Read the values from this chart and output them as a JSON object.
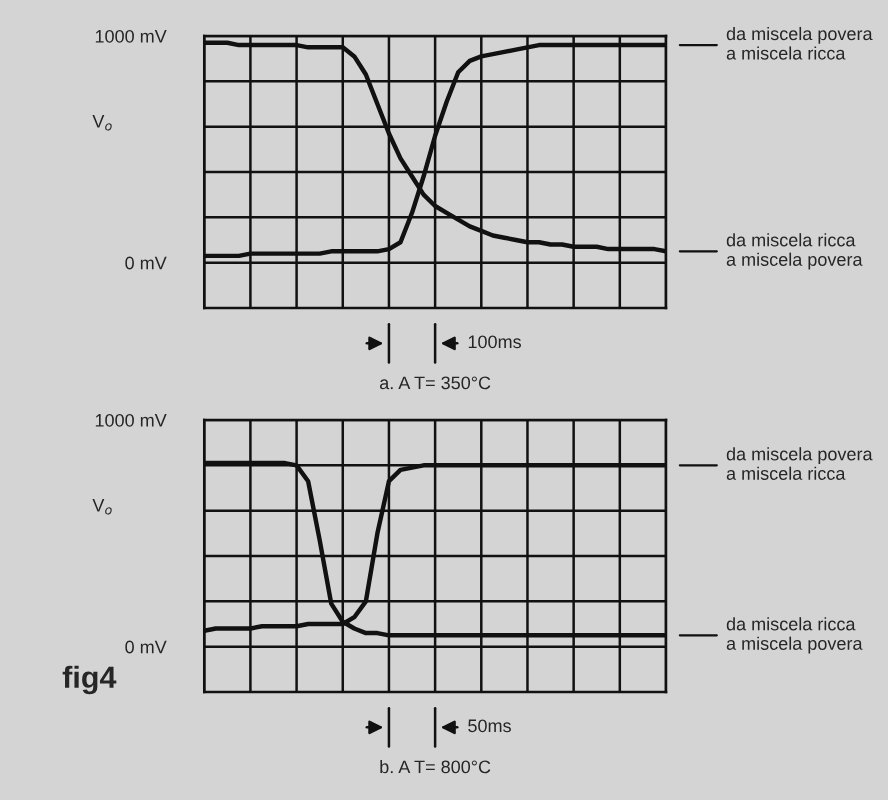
{
  "chart_data": [
    {
      "type": "line",
      "title": "a. A T= 350°C",
      "ylabel": "V$_{o}$",
      "ylim": [
        -200,
        1000
      ],
      "categories": [
        null,
        null,
        null,
        null,
        null,
        null,
        null,
        null,
        null,
        null,
        null,
        null,
        null,
        null,
        null,
        null,
        null,
        null,
        null,
        null,
        null,
        null,
        null,
        null,
        null,
        null,
        null,
        null,
        null,
        null,
        null,
        null,
        null,
        null,
        null,
        null,
        null,
        null,
        null,
        null,
        null
      ],
      "yticks": [
        {
          "value": 0,
          "label": "0 mV"
        },
        {
          "value": 200,
          "label": null
        },
        {
          "value": 400,
          "label": null
        },
        {
          "value": 600,
          "label": null
        },
        {
          "value": 800,
          "label": null
        },
        {
          "value": 1000,
          "label": "1000 mV"
        }
      ],
      "tick_labels": "y",
      "grid": true,
      "legend": "right",
      "marker": "none",
      "line_style": "solid",
      "annotations": [
        "100ms"
      ],
      "series": [
        {
          "name": "da miscela povera\na miscela ricca",
          "color": "#111111",
          "values": [
            30,
            30,
            30,
            30,
            40,
            40,
            40,
            40,
            40,
            40,
            40,
            50,
            50,
            50,
            50,
            50,
            60,
            90,
            220,
            380,
            560,
            710,
            840,
            890,
            910,
            920,
            930,
            940,
            950,
            960,
            960,
            960,
            960,
            960,
            960,
            960,
            960,
            960,
            960,
            960,
            960
          ]
        },
        {
          "name": "da miscela ricca\na miscela povera",
          "color": "#111111",
          "values": [
            970,
            970,
            970,
            960,
            960,
            960,
            960,
            960,
            960,
            950,
            950,
            950,
            950,
            910,
            830,
            700,
            570,
            460,
            380,
            300,
            250,
            220,
            190,
            160,
            140,
            120,
            110,
            100,
            90,
            90,
            80,
            80,
            70,
            70,
            70,
            60,
            60,
            60,
            60,
            60,
            50
          ]
        }
      ]
    },
    {
      "type": "line",
      "title": "b. A T= 800°C",
      "ylabel": "V$_{o}$",
      "ylim": [
        -200,
        1000
      ],
      "categories": [
        null,
        null,
        null,
        null,
        null,
        null,
        null,
        null,
        null,
        null,
        null,
        null,
        null,
        null,
        null,
        null,
        null,
        null,
        null,
        null,
        null,
        null,
        null,
        null,
        null,
        null,
        null,
        null,
        null,
        null,
        null,
        null,
        null,
        null,
        null,
        null,
        null,
        null,
        null,
        null,
        null
      ],
      "yticks": [
        {
          "value": 0,
          "label": "0 mV"
        },
        {
          "value": 200,
          "label": null
        },
        {
          "value": 400,
          "label": null
        },
        {
          "value": 600,
          "label": null
        },
        {
          "value": 800,
          "label": null
        },
        {
          "value": 1000,
          "label": "1000 mV"
        }
      ],
      "tick_labels": "y",
      "grid": true,
      "legend": "right",
      "marker": "none",
      "line_style": "solid",
      "annotations": [
        "50ms",
        "fig4"
      ],
      "series": [
        {
          "name": "da miscela povera\na miscela ricca",
          "color": "#111111",
          "values": [
            70,
            80,
            80,
            80,
            80,
            90,
            90,
            90,
            90,
            100,
            100,
            100,
            100,
            130,
            200,
            500,
            730,
            780,
            790,
            800,
            800,
            800,
            800,
            800,
            800,
            800,
            800,
            800,
            800,
            800,
            800,
            800,
            800,
            800,
            800,
            800,
            800,
            800,
            800,
            800,
            800
          ]
        },
        {
          "name": "da miscela ricca\na miscela povera",
          "color": "#111111",
          "values": [
            810,
            810,
            810,
            810,
            810,
            810,
            810,
            810,
            800,
            730,
            470,
            190,
            110,
            80,
            60,
            60,
            50,
            50,
            50,
            50,
            50,
            50,
            50,
            50,
            50,
            50,
            50,
            50,
            50,
            50,
            50,
            50,
            50,
            50,
            50,
            50,
            50,
            50,
            50,
            50,
            50
          ]
        }
      ]
    }
  ]
}
